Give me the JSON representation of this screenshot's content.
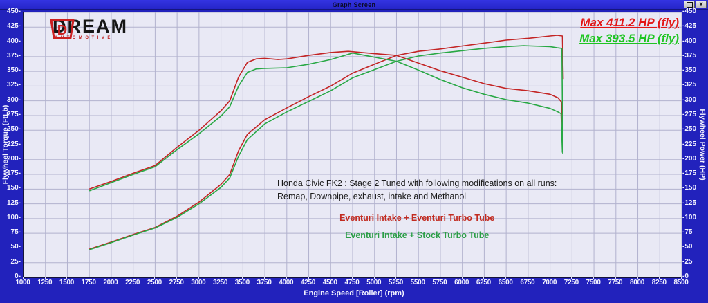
{
  "window": {
    "title": "Graph Screen",
    "buttons": [
      {
        "name": "resize-button",
        "icon": "resize-icon"
      },
      {
        "name": "close-button",
        "icon": "close-icon",
        "glyph": "X"
      }
    ]
  },
  "logo": {
    "badge_letter": "D",
    "brand": "DREAM",
    "sub": "AUTOMOTIVE"
  },
  "max_labels": [
    {
      "text": "Max 411.2 HP (fly)",
      "color": "#e31616"
    },
    {
      "text": "Max 393.5 HP (fly)",
      "color": "#1fc522"
    }
  ],
  "annotation": {
    "line1": "Honda Civic FK2 : Stage 2 Tuned with following modifications on all runs:",
    "line2": "Remap, Downpipe, exhaust, intake and Methanol",
    "legend": [
      {
        "text": "Eventuri Intake + Eventuri Turbo Tube",
        "color": "#c22b20"
      },
      {
        "text": "Eventuri Intake + Stock Turbo Tube",
        "color": "#2b9e46"
      }
    ]
  },
  "chart_data": {
    "type": "line",
    "xlabel": "Engine Speed [Roller] (rpm)",
    "ylabel_left": "Flywheel Torque (FtLb)",
    "ylabel_right": "Flywheel Power (HP)",
    "xlim": [
      1000,
      8500
    ],
    "ylim": [
      0,
      450
    ],
    "x_tick_step": 250,
    "y_tick_step": 25,
    "grid": true,
    "grid_color": "#b2b2ce",
    "background": "#e9e9f5",
    "legend_position": "center-annotation",
    "series": [
      {
        "name": "Eventuri Turbo Tube - Power (HP)",
        "color": "#c32424",
        "max": 411.2,
        "points": [
          [
            1750,
            48
          ],
          [
            2000,
            60
          ],
          [
            2250,
            73
          ],
          [
            2500,
            85
          ],
          [
            2750,
            104
          ],
          [
            3000,
            128
          ],
          [
            3250,
            158
          ],
          [
            3350,
            175
          ],
          [
            3450,
            215
          ],
          [
            3550,
            243
          ],
          [
            3750,
            268
          ],
          [
            4000,
            288
          ],
          [
            4250,
            307
          ],
          [
            4500,
            325
          ],
          [
            4750,
            347
          ],
          [
            5000,
            362
          ],
          [
            5250,
            377
          ],
          [
            5500,
            384
          ],
          [
            5750,
            388
          ],
          [
            6000,
            393
          ],
          [
            6250,
            398
          ],
          [
            6500,
            403
          ],
          [
            6750,
            406
          ],
          [
            7000,
            410
          ],
          [
            7080,
            411.2
          ],
          [
            7140,
            410
          ],
          [
            7150,
            337
          ]
        ]
      },
      {
        "name": "Eventuri Turbo Tube - Torque (FtLb)",
        "color": "#c32424",
        "points": [
          [
            1750,
            150
          ],
          [
            2000,
            163
          ],
          [
            2250,
            177
          ],
          [
            2500,
            190
          ],
          [
            2750,
            221
          ],
          [
            3000,
            250
          ],
          [
            3250,
            283
          ],
          [
            3350,
            300
          ],
          [
            3450,
            340
          ],
          [
            3550,
            365
          ],
          [
            3650,
            371
          ],
          [
            3750,
            372
          ],
          [
            3900,
            370
          ],
          [
            4000,
            371
          ],
          [
            4250,
            377
          ],
          [
            4500,
            382
          ],
          [
            4700,
            384
          ],
          [
            5000,
            380
          ],
          [
            5250,
            377
          ],
          [
            5500,
            364
          ],
          [
            5750,
            351
          ],
          [
            6000,
            340
          ],
          [
            6250,
            329
          ],
          [
            6500,
            321
          ],
          [
            6750,
            317
          ],
          [
            7000,
            311
          ],
          [
            7090,
            305
          ],
          [
            7130,
            298
          ],
          [
            7145,
            247
          ]
        ]
      },
      {
        "name": "Stock Turbo Tube - Power (HP)",
        "color": "#28a844",
        "max": 393.5,
        "points": [
          [
            1750,
            47
          ],
          [
            2000,
            59
          ],
          [
            2250,
            72
          ],
          [
            2500,
            84
          ],
          [
            2750,
            102
          ],
          [
            3000,
            125
          ],
          [
            3250,
            153
          ],
          [
            3350,
            169
          ],
          [
            3450,
            206
          ],
          [
            3550,
            234
          ],
          [
            3750,
            261
          ],
          [
            4000,
            281
          ],
          [
            4250,
            299
          ],
          [
            4500,
            317
          ],
          [
            4750,
            339
          ],
          [
            5000,
            353
          ],
          [
            5250,
            367
          ],
          [
            5500,
            376
          ],
          [
            5750,
            381
          ],
          [
            6000,
            385
          ],
          [
            6250,
            389
          ],
          [
            6500,
            392
          ],
          [
            6700,
            393.5
          ],
          [
            7000,
            392
          ],
          [
            7080,
            390
          ],
          [
            7135,
            389
          ],
          [
            7145,
            210
          ]
        ]
      },
      {
        "name": "Stock Turbo Tube - Torque (FtLb)",
        "color": "#28a844",
        "points": [
          [
            1750,
            147
          ],
          [
            2000,
            161
          ],
          [
            2250,
            175
          ],
          [
            2500,
            188
          ],
          [
            2750,
            217
          ],
          [
            3000,
            244
          ],
          [
            3250,
            274
          ],
          [
            3350,
            290
          ],
          [
            3450,
            325
          ],
          [
            3550,
            348
          ],
          [
            3650,
            354
          ],
          [
            3750,
            355
          ],
          [
            4000,
            356
          ],
          [
            4250,
            362
          ],
          [
            4500,
            370
          ],
          [
            4750,
            381
          ],
          [
            5000,
            374
          ],
          [
            5250,
            367
          ],
          [
            5500,
            352
          ],
          [
            5750,
            336
          ],
          [
            6000,
            322
          ],
          [
            6250,
            311
          ],
          [
            6500,
            302
          ],
          [
            6750,
            296
          ],
          [
            7000,
            287
          ],
          [
            7090,
            281
          ],
          [
            7125,
            278
          ],
          [
            7140,
            212
          ]
        ]
      }
    ]
  }
}
